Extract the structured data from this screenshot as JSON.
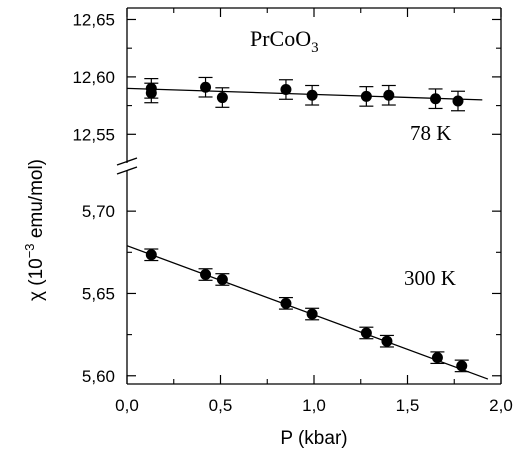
{
  "chart_data": {
    "type": "scatter",
    "xlabel": "P (kbar)",
    "ylabel": "χ (10",
    "ylabel_sup": "−3",
    "ylabel_tail": " emu/mol)",
    "compound": "PrCoO",
    "compound_sub": "3",
    "xlim": [
      0.0,
      2.0
    ],
    "x_ticks": [
      "0,0",
      "0,5",
      "1,0",
      "1,5",
      "2,0"
    ],
    "panels": [
      {
        "name": "upper",
        "ylim": [
          12.525,
          12.66
        ],
        "y_ticks": [
          "12,55",
          "12,60",
          "12,65"
        ],
        "y_tick_values": [
          12.55,
          12.6,
          12.65
        ],
        "series": {
          "label": "78 K",
          "x": [
            0.13,
            0.13,
            0.42,
            0.51,
            0.85,
            0.99,
            1.28,
            1.4,
            1.65,
            1.77
          ],
          "y": [
            12.59,
            12.586,
            12.591,
            12.582,
            12.589,
            12.584,
            12.583,
            12.584,
            12.581,
            12.579
          ],
          "err": 0.0085,
          "fit": {
            "x": [
              0.0,
              1.9
            ],
            "y": [
              12.59,
              12.58
            ]
          }
        }
      },
      {
        "name": "lower",
        "ylim": [
          5.595,
          5.725
        ],
        "y_ticks": [
          "5,60",
          "5,65",
          "5,70"
        ],
        "y_tick_values": [
          5.6,
          5.65,
          5.7
        ],
        "series": {
          "label": "300 K",
          "x": [
            0.13,
            0.42,
            0.51,
            0.85,
            0.99,
            1.28,
            1.39,
            1.66,
            1.79
          ],
          "y": [
            5.6735,
            5.6615,
            5.6585,
            5.644,
            5.6375,
            5.626,
            5.621,
            5.611,
            5.606
          ],
          "err": 0.0035,
          "fit": {
            "x": [
              0.0,
              1.93
            ],
            "y": [
              5.679,
              5.598
            ]
          }
        }
      }
    ]
  }
}
